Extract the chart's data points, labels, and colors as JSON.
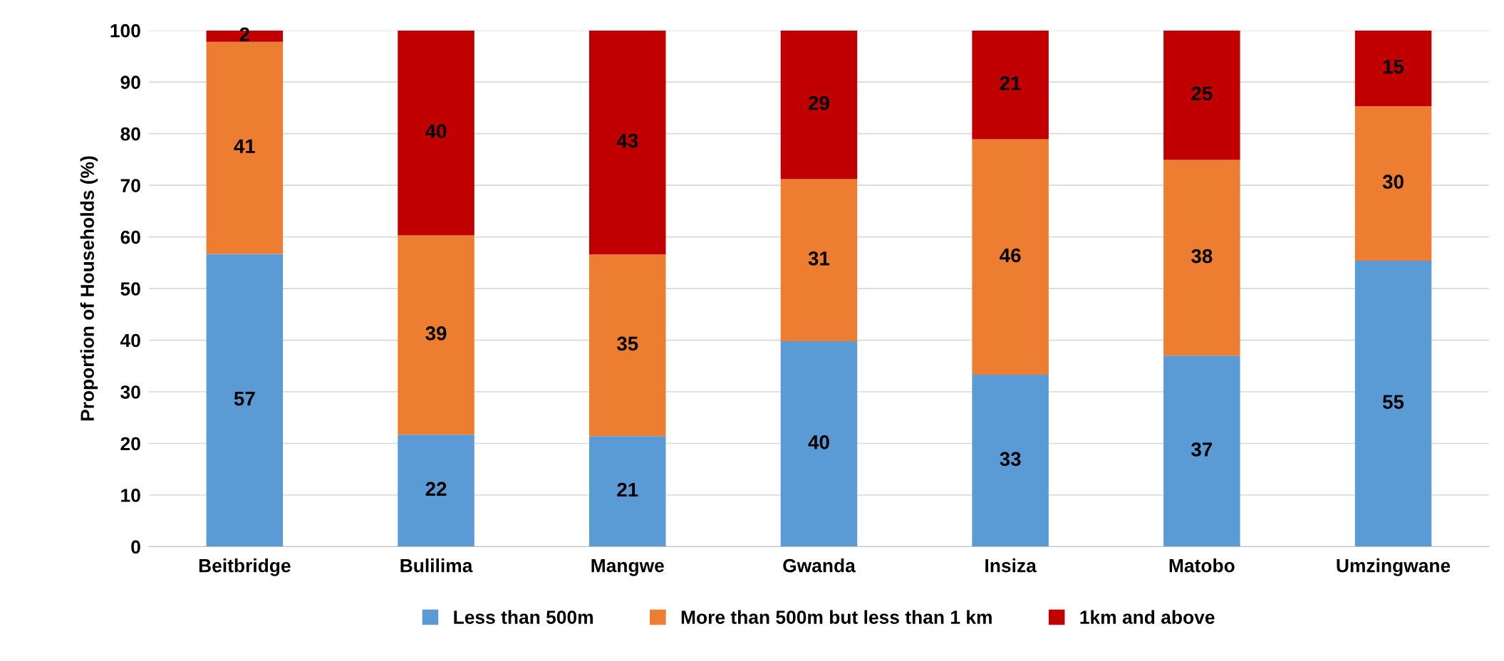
{
  "chart_data": {
    "type": "bar",
    "stacked": true,
    "ylabel": "Proportion of Households (%)",
    "categories": [
      "Beitbridge",
      "Bulilima",
      "Mangwe",
      "Gwanda",
      "Insiza",
      "Matobo",
      "Umzingwane"
    ],
    "series": [
      {
        "name": "Less than 500m",
        "color": "#5b9bd5",
        "values": [
          56.7,
          21.7,
          21.4,
          39.8,
          33.3,
          37.0,
          55.4
        ],
        "value_labels": [
          "57",
          "22",
          "21",
          "40",
          "33",
          "37",
          "55"
        ]
      },
      {
        "name": "More than 500m but less than 1 km",
        "color": "#ed7d31",
        "values": [
          41.1,
          38.6,
          35.2,
          31.4,
          45.6,
          37.9,
          29.9
        ],
        "value_labels": [
          "41",
          "39",
          "35",
          "31",
          "46",
          "38",
          "30"
        ]
      },
      {
        "name": "1km and above",
        "color": "#c00000",
        "values": [
          2.2,
          39.7,
          43.4,
          28.8,
          21.1,
          25.1,
          14.7
        ],
        "value_labels": [
          "2",
          "40",
          "43",
          "29",
          "21",
          "25",
          "15"
        ]
      }
    ],
    "ylim": [
      0,
      100
    ],
    "yticks": [
      0,
      10,
      20,
      30,
      40,
      50,
      60,
      70,
      80,
      90,
      100
    ],
    "grid": "y",
    "legend": "bottom"
  }
}
